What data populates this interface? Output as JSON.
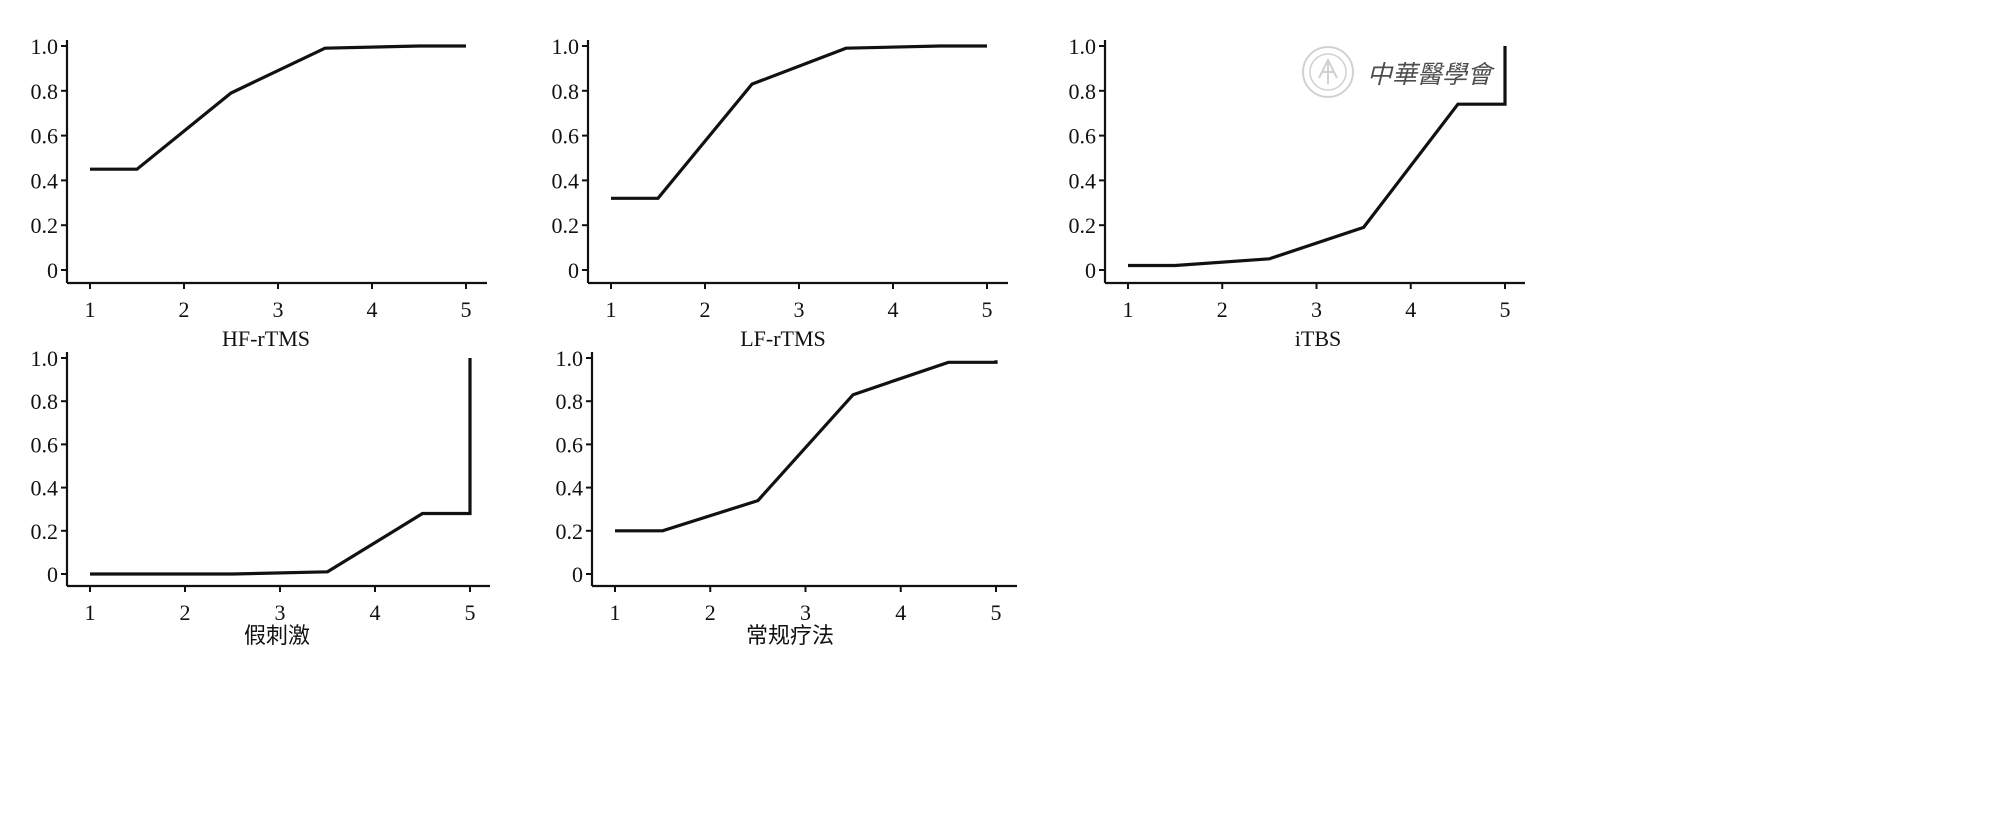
{
  "chart_data": [
    {
      "type": "line",
      "xlabel": "HF-rTMS",
      "x_ticks": [
        "1",
        "2",
        "3",
        "4",
        "5"
      ],
      "y_ticks": [
        "0",
        "0.2",
        "0.4",
        "0.6",
        "0.8",
        "1.0"
      ],
      "xlim": [
        1,
        5
      ],
      "ylim": [
        0,
        1
      ],
      "grid": false,
      "series": [
        {
          "x": [
            1,
            1.5,
            2.5,
            3.5,
            4.5,
            5
          ],
          "y": [
            0.45,
            0.45,
            0.79,
            0.99,
            1.0,
            1.0
          ]
        }
      ]
    },
    {
      "type": "line",
      "xlabel": "LF-rTMS",
      "x_ticks": [
        "1",
        "2",
        "3",
        "4",
        "5"
      ],
      "y_ticks": [
        "0",
        "0.2",
        "0.4",
        "0.6",
        "0.8",
        "1.0"
      ],
      "xlim": [
        1,
        5
      ],
      "ylim": [
        0,
        1
      ],
      "grid": false,
      "series": [
        {
          "x": [
            1,
            1.5,
            2.5,
            3.5,
            4.5,
            5
          ],
          "y": [
            0.32,
            0.32,
            0.83,
            0.99,
            1.0,
            1.0
          ]
        }
      ]
    },
    {
      "type": "line",
      "xlabel": "iTBS",
      "x_ticks": [
        "1",
        "2",
        "3",
        "4",
        "5"
      ],
      "y_ticks": [
        "0",
        "0.2",
        "0.4",
        "0.6",
        "0.8",
        "1.0"
      ],
      "xlim": [
        1,
        5
      ],
      "ylim": [
        0,
        1
      ],
      "grid": false,
      "series": [
        {
          "x": [
            1,
            1.5,
            2.5,
            3.5,
            4.5,
            5,
            5
          ],
          "y": [
            0.02,
            0.02,
            0.05,
            0.19,
            0.74,
            0.74,
            1.0
          ]
        }
      ]
    },
    {
      "type": "line",
      "xlabel": "假刺激",
      "x_ticks": [
        "1",
        "2",
        "3",
        "4",
        "5"
      ],
      "y_ticks": [
        "0",
        "0.2",
        "0.4",
        "0.6",
        "0.8",
        "1.0"
      ],
      "xlim": [
        1,
        5
      ],
      "ylim": [
        0,
        1
      ],
      "grid": false,
      "series": [
        {
          "x": [
            1,
            1.5,
            2.5,
            3.5,
            4.5,
            5,
            5
          ],
          "y": [
            0.0,
            0.0,
            0.0,
            0.01,
            0.28,
            0.28,
            1.0
          ]
        }
      ]
    },
    {
      "type": "line",
      "xlabel": "常规疗法",
      "x_ticks": [
        "1",
        "2",
        "3",
        "4",
        "5"
      ],
      "y_ticks": [
        "0",
        "0.2",
        "0.4",
        "0.6",
        "0.8",
        "1.0"
      ],
      "xlim": [
        1,
        5
      ],
      "ylim": [
        0,
        1
      ],
      "grid": false,
      "series": [
        {
          "x": [
            1,
            1.5,
            2.5,
            3.5,
            4.5,
            5,
            5
          ],
          "y": [
            0.2,
            0.2,
            0.34,
            0.83,
            0.98,
            0.98,
            0.99
          ]
        }
      ]
    }
  ],
  "watermark": {
    "text": "中華醫學會",
    "icon": "society-seal-icon"
  }
}
